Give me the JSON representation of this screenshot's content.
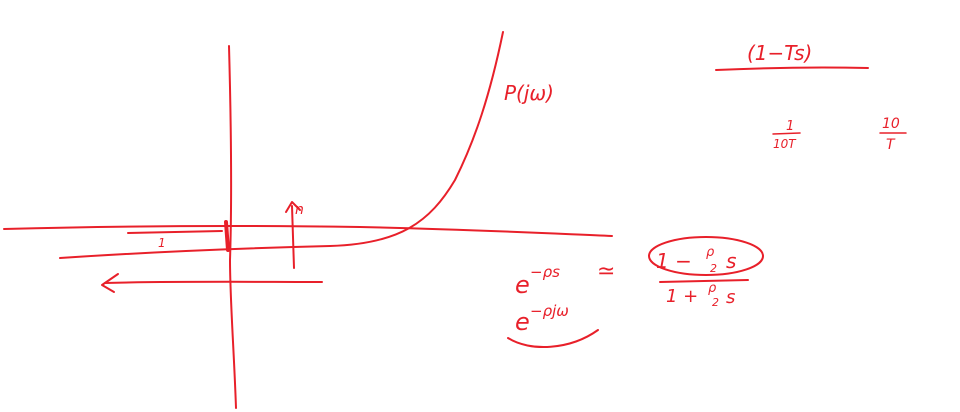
{
  "ink_color": "#e8202a",
  "labels": {
    "plot_label": "P(jω)",
    "tick_mark": "1",
    "axis_arrow_label": "n"
  },
  "notes": {
    "transfer_numerator": "(1−Ts)",
    "freq_low_num": "1",
    "freq_low_den": "10T",
    "freq_high_num": "10",
    "freq_high_den": "T",
    "delay_expr": "e",
    "delay_exp": "−ρs",
    "approx_symbol": "≃",
    "pade_numerator": "1 − ",
    "pade_numerator_frac_num": "ρ",
    "pade_numerator_frac_den": "2",
    "pade_numerator_var": "s",
    "pade_denominator": "1 + ",
    "pade_denominator_frac_num": "ρ",
    "pade_denominator_frac_den": "2",
    "pade_denominator_var": "s",
    "freq_delay_expr": "e",
    "freq_delay_exp": "−ρjω"
  }
}
